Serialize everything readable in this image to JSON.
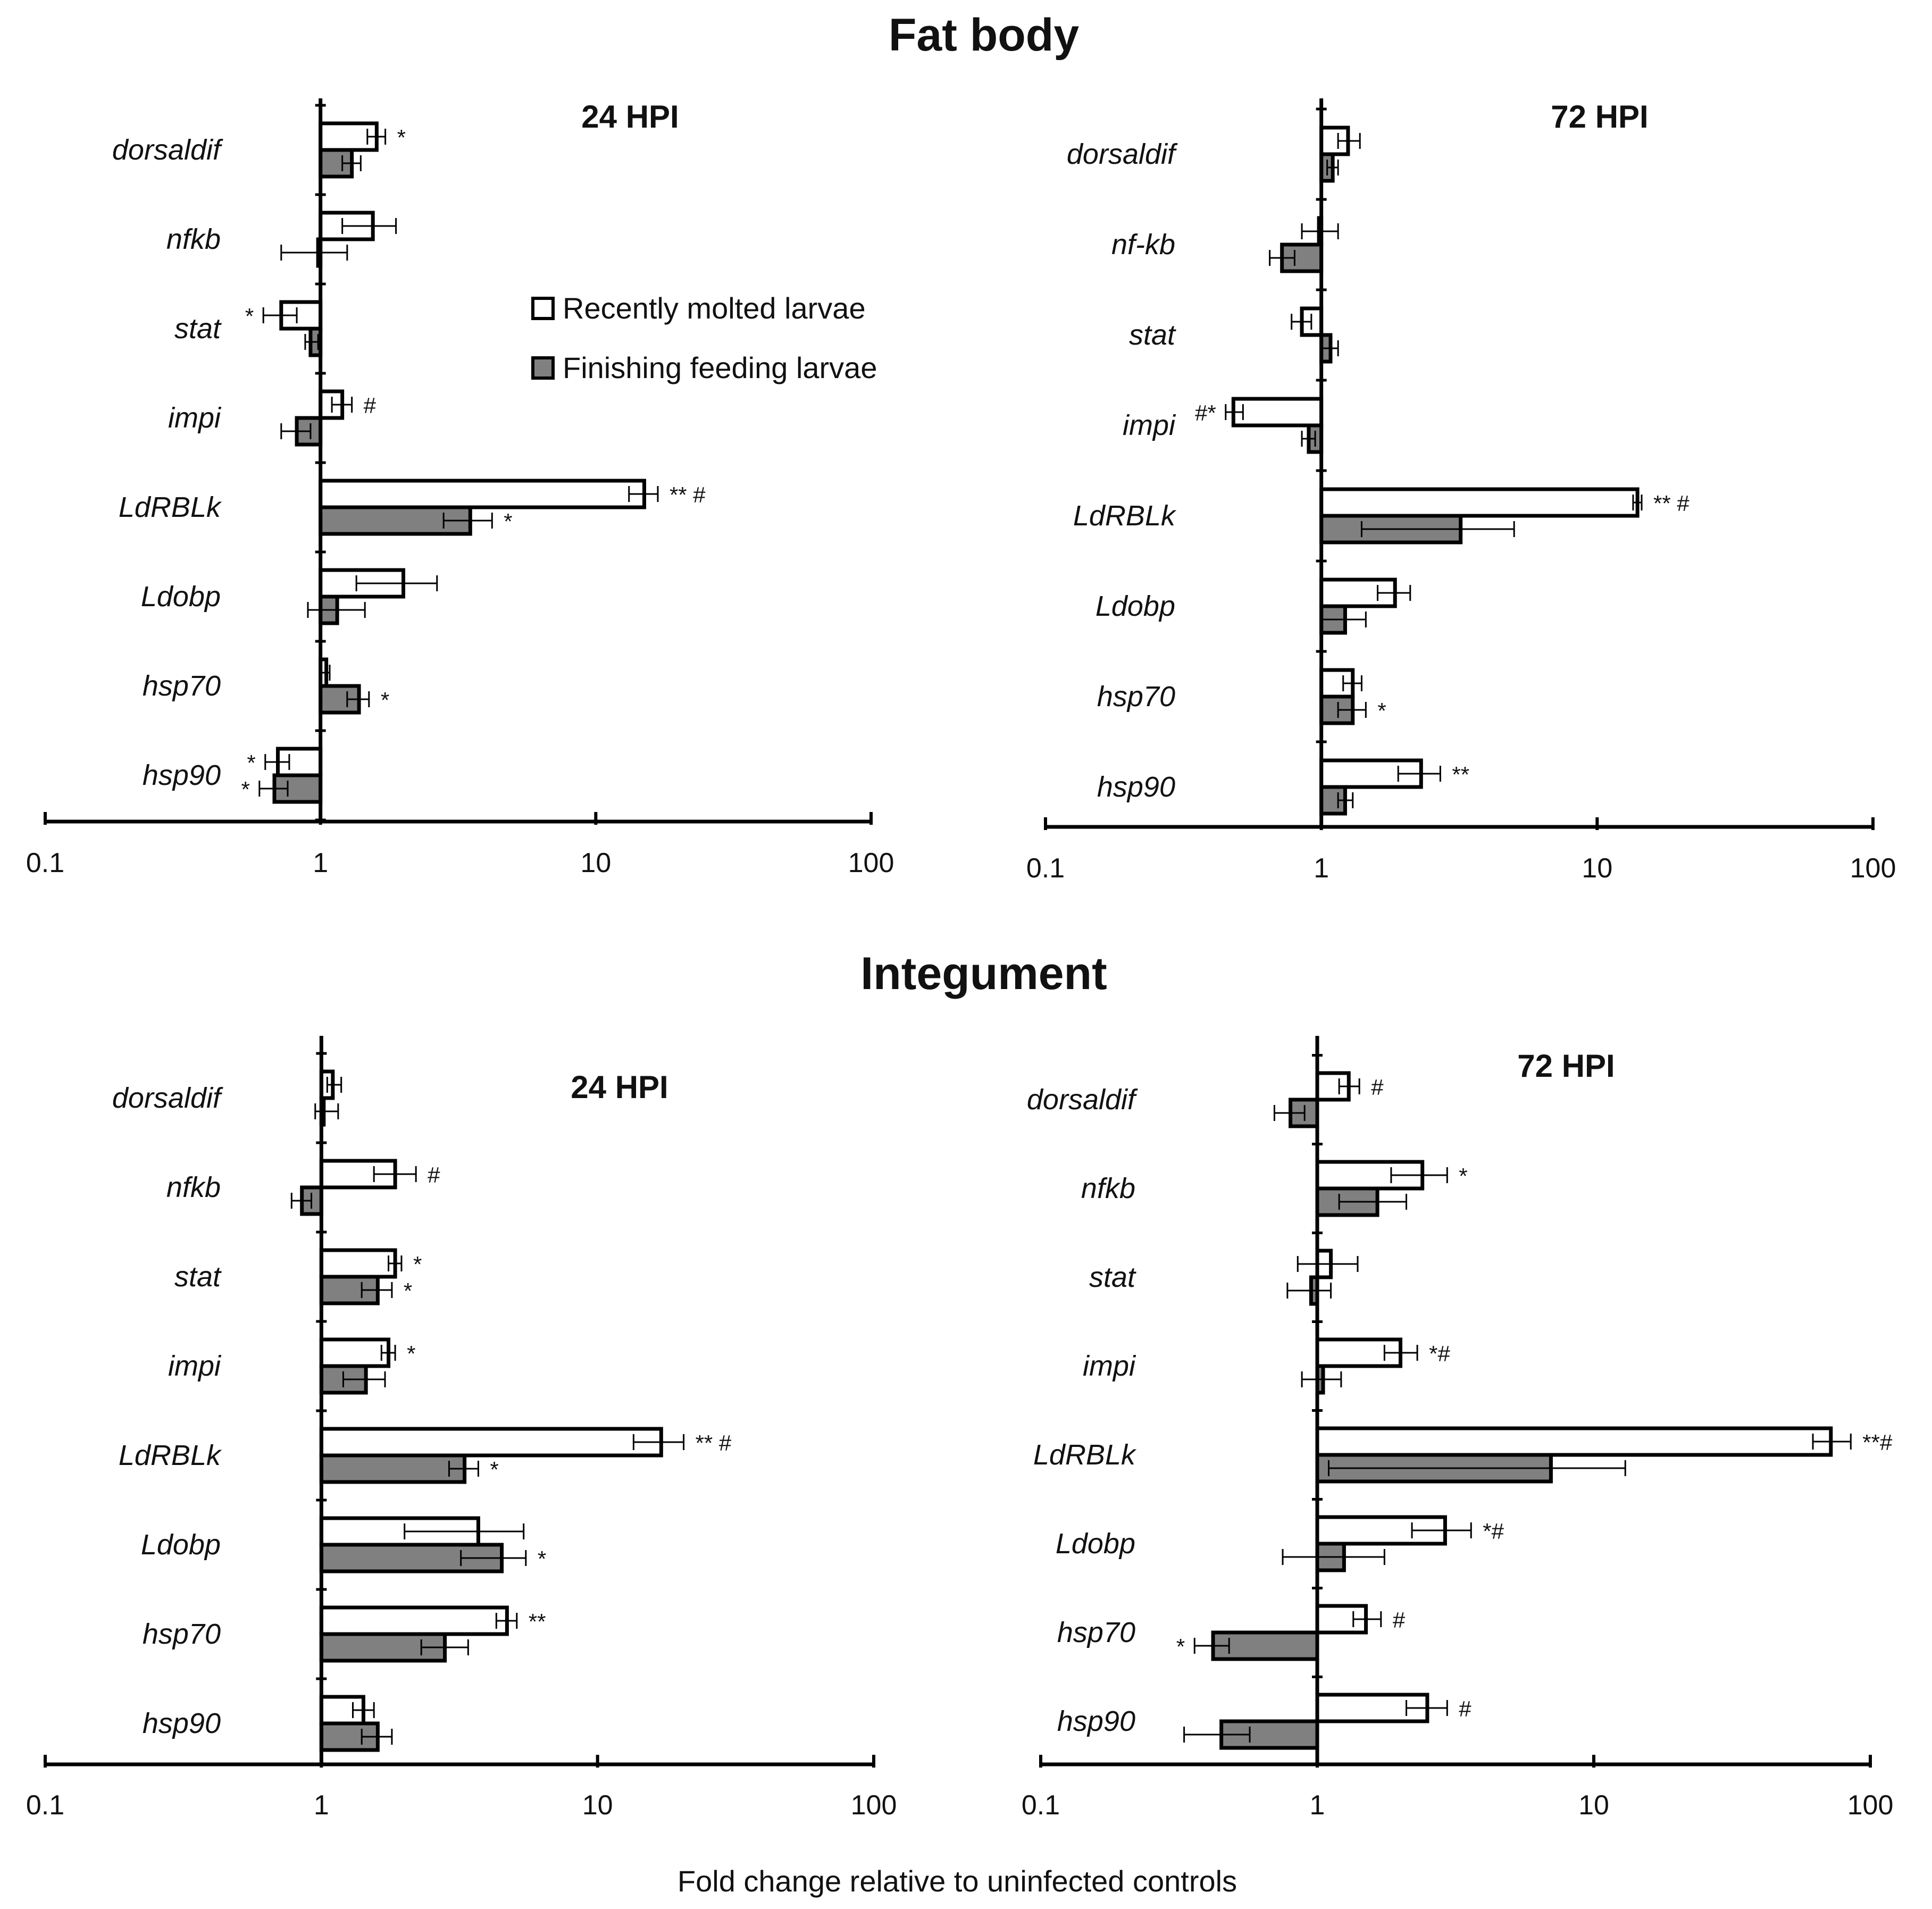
{
  "chart_data": {
    "type": "bar",
    "orientation": "horizontal",
    "xscale": "log",
    "xlim": [
      0.1,
      100
    ],
    "xticks": [
      "0.1",
      "1",
      "10",
      "100"
    ],
    "xlabel": "Fold change relative to uninfected controls",
    "legend": {
      "position": "top-center",
      "entries": [
        {
          "name": "Recently molted larvae",
          "color": "#ffffff"
        },
        {
          "name": "Finishing feeding larvae",
          "color": "#808080"
        }
      ]
    },
    "colors": {
      "series1": "#ffffff",
      "series2": "#808080",
      "stroke": "#000000"
    },
    "sections": [
      {
        "title": "Fat body",
        "panels": [
          {
            "title": "24 HPI",
            "categories": [
              "dorsaldif",
              "nfkb",
              "stat",
              "impi",
              "LdRBLk",
              "Ldobp",
              "hsp70",
              "hsp90"
            ],
            "series": [
              {
                "name": "Recently molted larvae",
                "values": [
                  1.6,
                  1.55,
                  0.72,
                  1.2,
                  15.0,
                  2.0,
                  1.05,
                  0.7
                ],
                "err_low": [
                  1.48,
                  1.2,
                  0.62,
                  1.1,
                  13.2,
                  1.35,
                  1.0,
                  0.63
                ],
                "err_high": [
                  1.72,
                  1.88,
                  0.82,
                  1.3,
                  16.8,
                  2.65,
                  1.08,
                  0.77
                ],
                "annotations": [
                  "*",
                  "",
                  "*",
                  "#",
                  "** #",
                  "",
                  "",
                  "*"
                ]
              },
              {
                "name": "Finishing feeding larvae",
                "values": [
                  1.3,
                  0.98,
                  0.92,
                  0.82,
                  3.5,
                  1.15,
                  1.38,
                  0.68
                ],
                "err_low": [
                  1.2,
                  0.72,
                  0.88,
                  0.72,
                  2.8,
                  0.9,
                  1.25,
                  0.6
                ],
                "err_high": [
                  1.4,
                  1.25,
                  0.98,
                  0.92,
                  4.2,
                  1.45,
                  1.5,
                  0.76
                ],
                "annotations": [
                  "",
                  "",
                  "",
                  "",
                  "*",
                  "",
                  "*",
                  "*"
                ]
              }
            ]
          },
          {
            "title": "72 HPI",
            "categories": [
              "dorsaldif",
              "nf-kb",
              "stat",
              "impi",
              "LdRBLk",
              "Ldobp",
              "hsp70",
              "hsp90"
            ],
            "series": [
              {
                "name": "Recently molted larvae",
                "values": [
                  1.25,
                  0.98,
                  0.85,
                  0.48,
                  14.0,
                  1.85,
                  1.3,
                  2.3
                ],
                "err_low": [
                  1.15,
                  0.85,
                  0.78,
                  0.45,
                  13.5,
                  1.6,
                  1.2,
                  1.9
                ],
                "err_high": [
                  1.38,
                  1.15,
                  0.92,
                  0.52,
                  14.5,
                  2.1,
                  1.4,
                  2.7
                ],
                "annotations": [
                  "",
                  "",
                  "",
                  "#*",
                  "** #",
                  "",
                  "",
                  "**"
                ]
              },
              {
                "name": "Finishing feeding larvae",
                "values": [
                  1.1,
                  0.72,
                  1.08,
                  0.9,
                  3.2,
                  1.22,
                  1.3,
                  1.22
                ],
                "err_low": [
                  1.05,
                  0.65,
                  1.0,
                  0.85,
                  1.4,
                  1.0,
                  1.15,
                  1.15
                ],
                "err_high": [
                  1.15,
                  0.8,
                  1.15,
                  0.95,
                  5.0,
                  1.45,
                  1.45,
                  1.3
                ],
                "annotations": [
                  "",
                  "",
                  "",
                  "",
                  "",
                  "",
                  "*",
                  ""
                ]
              }
            ]
          }
        ]
      },
      {
        "title": "Integument",
        "panels": [
          {
            "title": "24 HPI",
            "categories": [
              "dorsaldif",
              "nfkb",
              "stat",
              "impi",
              "LdRBLk",
              "Ldobp",
              "hsp70",
              "hsp90"
            ],
            "series": [
              {
                "name": "Recently molted larvae",
                "values": [
                  1.1,
                  1.85,
                  1.85,
                  1.75,
                  17.0,
                  3.7,
                  4.7,
                  1.42
                ],
                "err_low": [
                  1.05,
                  1.55,
                  1.75,
                  1.65,
                  13.5,
                  2.0,
                  4.3,
                  1.3
                ],
                "err_high": [
                  1.18,
                  2.2,
                  1.95,
                  1.85,
                  20.5,
                  5.4,
                  5.1,
                  1.55
                ],
                "annotations": [
                  "",
                  "#",
                  "*",
                  "*",
                  "** #",
                  "",
                  "**",
                  ""
                ]
              },
              {
                "name": "Finishing feeding larvae",
                "values": [
                  1.02,
                  0.85,
                  1.6,
                  1.45,
                  3.3,
                  4.5,
                  2.8,
                  1.6
                ],
                "err_low": [
                  0.95,
                  0.78,
                  1.4,
                  1.2,
                  2.9,
                  3.2,
                  2.3,
                  1.4
                ],
                "err_high": [
                  1.15,
                  0.92,
                  1.8,
                  1.7,
                  3.7,
                  5.5,
                  3.4,
                  1.8
                ],
                "annotations": [
                  "",
                  "",
                  "*",
                  "",
                  "*",
                  "*",
                  "",
                  ""
                ]
              }
            ]
          },
          {
            "title": "72 HPI",
            "categories": [
              "dorsaldif",
              "nfkb",
              "stat",
              "impi",
              "LdRBLk",
              "Ldobp",
              "hsp70",
              "hsp90"
            ],
            "series": [
              {
                "name": "Recently molted larvae",
                "values": [
                  1.3,
                  2.4,
                  1.12,
                  2.0,
                  72.0,
                  2.9,
                  1.5,
                  2.5
                ],
                "err_low": [
                  1.2,
                  1.85,
                  0.85,
                  1.75,
                  62.0,
                  2.2,
                  1.35,
                  2.1
                ],
                "err_high": [
                  1.42,
                  2.95,
                  1.4,
                  2.3,
                  85.0,
                  3.6,
                  1.7,
                  2.95
                ],
                "annotations": [
                  "#",
                  "*",
                  "",
                  "*#",
                  "**#",
                  "*#",
                  "#",
                  "#"
                ]
              },
              {
                "name": "Finishing feeding larvae",
                "values": [
                  0.8,
                  1.65,
                  0.95,
                  1.05,
                  7.0,
                  1.25,
                  0.42,
                  0.45
                ],
                "err_low": [
                  0.7,
                  1.2,
                  0.78,
                  0.88,
                  1.1,
                  0.75,
                  0.36,
                  0.33
                ],
                "err_high": [
                  0.9,
                  2.1,
                  1.12,
                  1.22,
                  13.0,
                  1.75,
                  0.48,
                  0.57
                ],
                "annotations": [
                  "",
                  "",
                  "",
                  "",
                  "",
                  "",
                  "*",
                  ""
                ]
              }
            ]
          }
        ]
      }
    ]
  }
}
